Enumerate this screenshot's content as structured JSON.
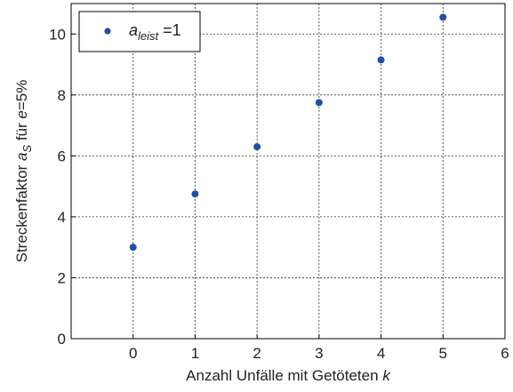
{
  "chart_data": {
    "type": "scatter",
    "xlabel": "Anzahl Unfälle mit Getöteten",
    "xlabel_var": "k",
    "ylabel_prefix": "Streckenfaktor",
    "ylabel_var": "a",
    "ylabel_var_sub": "S",
    "ylabel_mid": "für",
    "ylabel_cond_var": "e",
    "ylabel_cond_val": "=5%",
    "xlim": [
      -1,
      6
    ],
    "ylim": [
      0,
      11
    ],
    "xticks": [
      0,
      1,
      2,
      3,
      4,
      5,
      6
    ],
    "yticks": [
      0,
      2,
      4,
      6,
      8,
      10
    ],
    "grid": true,
    "legend_position": "top-left",
    "series": [
      {
        "name": "a_leist =1",
        "legend_var": "a",
        "legend_sub": "leist",
        "legend_suffix": " =1",
        "color": "#1f4fa8",
        "x": [
          0,
          1,
          2,
          3,
          4,
          5
        ],
        "y": [
          3.0,
          4.75,
          6.3,
          7.75,
          9.15,
          10.55
        ]
      }
    ]
  }
}
